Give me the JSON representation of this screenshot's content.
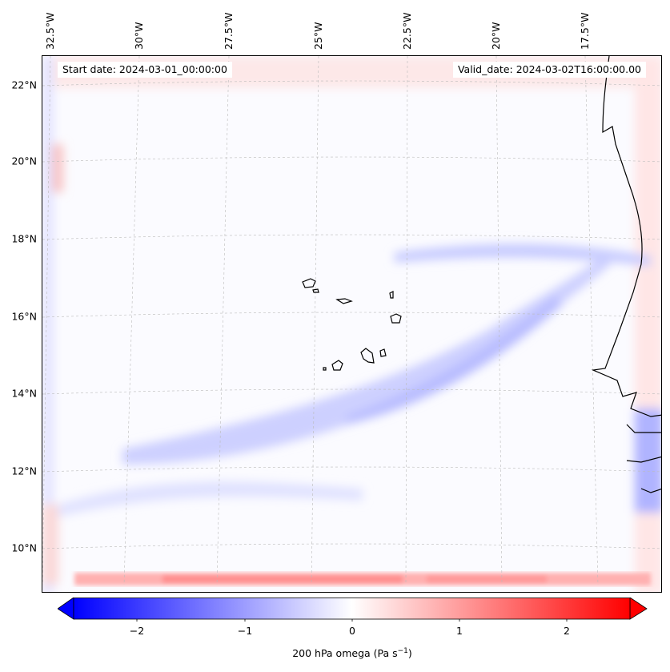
{
  "map": {
    "start_date": "Start date: 2024-03-01_00:00:00",
    "valid_date": "Valid_date: 2024-03-02T16:00:00.00",
    "lon_labels": [
      "32.5°W",
      "30°W",
      "27.5°W",
      "25°W",
      "22.5°W",
      "20°W",
      "17.5°W"
    ],
    "lat_labels": [
      "22°N",
      "20°N",
      "18°N",
      "16°N",
      "14°N",
      "12°N",
      "10°N"
    ]
  },
  "colorbar": {
    "ticks": [
      "−2",
      "−1",
      "0",
      "1",
      "2"
    ],
    "tick_values": [
      -2,
      -1,
      0,
      1,
      2
    ],
    "range": [
      -2.6,
      2.6
    ],
    "label": "200 hPa omega (Pa s",
    "label_sup": "−1",
    "label_end": ")",
    "colors": {
      "min": "#0000ff",
      "mid": "#ffffff",
      "max": "#ff0000"
    }
  }
}
